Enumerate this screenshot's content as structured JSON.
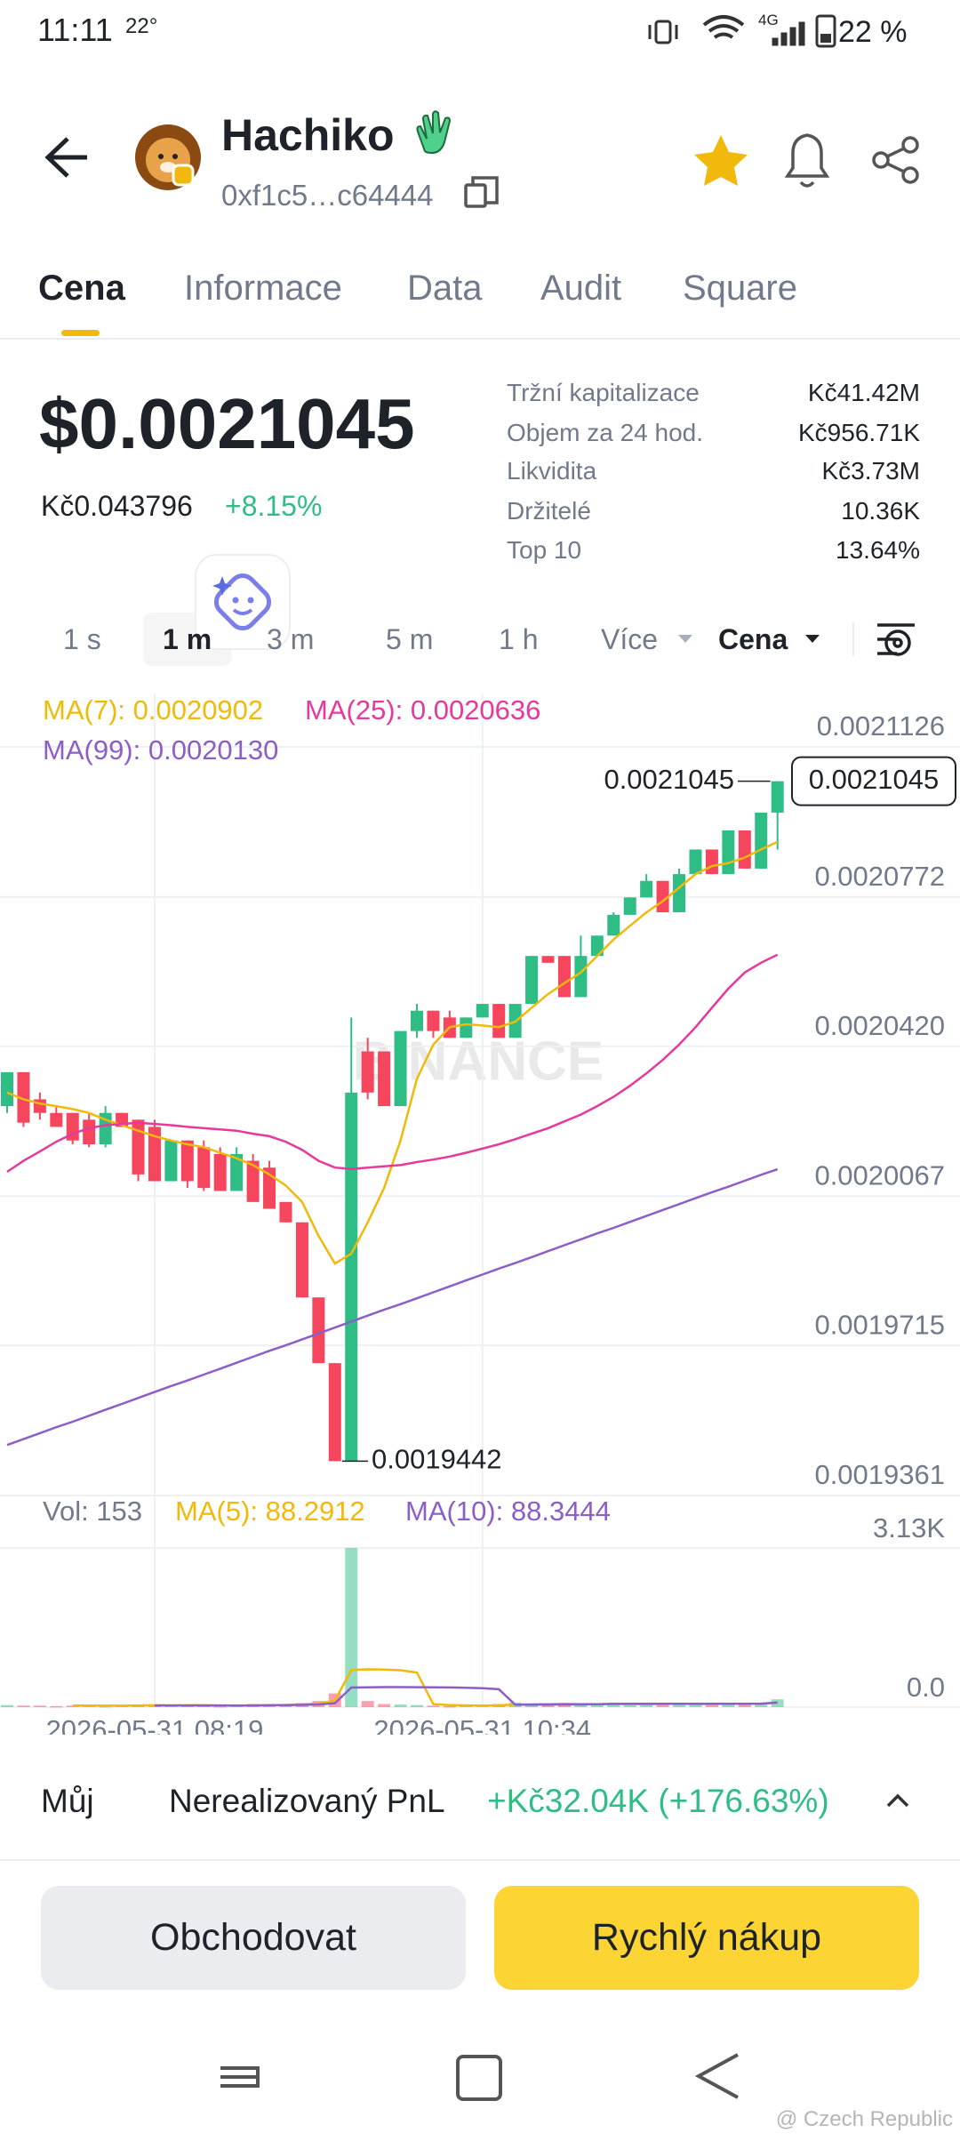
{
  "status": {
    "time": "11:11",
    "temperature": "22°",
    "network": "4G",
    "battery": "22 %"
  },
  "header": {
    "name": "Hachiko",
    "address": "0xf1c5…c64444"
  },
  "tabs": [
    "Cena",
    "Informace",
    "Data",
    "Audit",
    "Square"
  ],
  "price": {
    "usd": "$0.0021045",
    "fiat": "Kč0.043796",
    "change": "+8.15%"
  },
  "stats": [
    {
      "label": "Tržní kapitalizace",
      "value": "Kč41.42M"
    },
    {
      "label": "Objem za 24 hod.",
      "value": "Kč956.71K"
    },
    {
      "label": "Likvidita",
      "value": "Kč3.73M"
    },
    {
      "label": "Držitelé",
      "value": "10.36K"
    },
    {
      "label": "Top 10",
      "value": "13.64%"
    }
  ],
  "intervals": [
    "1 s",
    "1 m",
    "3 m",
    "5 m",
    "1 h",
    "Více",
    "Cena"
  ],
  "chart_data": [
    {
      "type": "candlestick",
      "watermark": "BINANCE",
      "categories": [
        null,
        null,
        null,
        null,
        null,
        null,
        null,
        null,
        null,
        "2026-05-31 08:19",
        null,
        null,
        null,
        null,
        null,
        null,
        null,
        null,
        null,
        null,
        null,
        null,
        null,
        null,
        null,
        null,
        null,
        null,
        null,
        "2026-05-31 10:34",
        null,
        null,
        null,
        null,
        null,
        null,
        null,
        null,
        null,
        null,
        null,
        null,
        null,
        null,
        null,
        null,
        null,
        null
      ],
      "up_color": "#2ebd85",
      "down_color": "#f6465d",
      "candles": [
        {
          "o": 0.0020279,
          "h": 0.0020359,
          "l": 0.0020263,
          "c": 0.0020359
        },
        {
          "o": 0.0020359,
          "h": 0.0020359,
          "l": 0.002023,
          "c": 0.002024
        },
        {
          "o": 0.0020295,
          "h": 0.0020311,
          "l": 0.0020247,
          "c": 0.0020263
        },
        {
          "o": 0.0020263,
          "h": 0.0020279,
          "l": 0.002023,
          "c": 0.002023
        },
        {
          "o": 0.0020263,
          "h": 0.0020263,
          "l": 0.0020189,
          "c": 0.0020198
        },
        {
          "o": 0.0020247,
          "h": 0.0020263,
          "l": 0.0020182,
          "c": 0.0020189
        },
        {
          "o": 0.0020189,
          "h": 0.0020279,
          "l": 0.0020182,
          "c": 0.0020263
        },
        {
          "o": 0.0020263,
          "h": 0.0020263,
          "l": 0.002023,
          "c": 0.002023
        },
        {
          "o": 0.0020247,
          "h": 0.0020247,
          "l": 0.0020102,
          "c": 0.0020118
        },
        {
          "o": 0.002023,
          "h": 0.0020247,
          "l": 0.0020102,
          "c": 0.0020102
        },
        {
          "o": 0.0020102,
          "h": 0.0020198,
          "l": 0.0020102,
          "c": 0.0020198
        },
        {
          "o": 0.0020198,
          "h": 0.0020198,
          "l": 0.0020086,
          "c": 0.0020102
        },
        {
          "o": 0.0020182,
          "h": 0.0020198,
          "l": 0.0020079,
          "c": 0.0020086
        },
        {
          "o": 0.0020166,
          "h": 0.0020182,
          "l": 0.0020079,
          "c": 0.0020079
        },
        {
          "o": 0.0020079,
          "h": 0.0020182,
          "l": 0.0020079,
          "c": 0.0020166
        },
        {
          "o": 0.002015,
          "h": 0.0020166,
          "l": 0.0020053,
          "c": 0.0020053
        },
        {
          "o": 0.0020134,
          "h": 0.002015,
          "l": 0.0020037,
          "c": 0.0020037
        },
        {
          "o": 0.0020053,
          "h": 0.0020053,
          "l": 0.0020005,
          "c": 0.0020005
        },
        {
          "o": 0.0020005,
          "h": 0.0020005,
          "l": 0.0019828,
          "c": 0.0019828
        },
        {
          "o": 0.0019828,
          "h": 0.0019828,
          "l": 0.0019673,
          "c": 0.0019673
        },
        {
          "o": 0.0019673,
          "h": 0.0019673,
          "l": 0.0019442,
          "c": 0.0019442
        },
        {
          "o": 0.0019442,
          "h": 0.0020488,
          "l": 0.0019442,
          "c": 0.0020311
        },
        {
          "o": 0.0020408,
          "h": 0.002044,
          "l": 0.0020295,
          "c": 0.0020311
        },
        {
          "o": 0.0020408,
          "h": 0.0020408,
          "l": 0.0020279,
          "c": 0.0020279
        },
        {
          "o": 0.0020279,
          "h": 0.0020456,
          "l": 0.0020279,
          "c": 0.0020456
        },
        {
          "o": 0.0020456,
          "h": 0.002052,
          "l": 0.002044,
          "c": 0.0020504
        },
        {
          "o": 0.0020504,
          "h": 0.0020504,
          "l": 0.002044,
          "c": 0.0020456
        },
        {
          "o": 0.0020488,
          "h": 0.0020504,
          "l": 0.002044,
          "c": 0.002044
        },
        {
          "o": 0.002044,
          "h": 0.0020488,
          "l": 0.002044,
          "c": 0.0020488
        },
        {
          "o": 0.0020488,
          "h": 0.002052,
          "l": 0.0020488,
          "c": 0.002052
        },
        {
          "o": 0.002052,
          "h": 0.002052,
          "l": 0.002044,
          "c": 0.002044
        },
        {
          "o": 0.002044,
          "h": 0.002052,
          "l": 0.002044,
          "c": 0.002052
        },
        {
          "o": 0.002052,
          "h": 0.0020633,
          "l": 0.002052,
          "c": 0.0020633
        },
        {
          "o": 0.0020633,
          "h": 0.0020633,
          "l": 0.0020617,
          "c": 0.0020617
        },
        {
          "o": 0.0020633,
          "h": 0.0020633,
          "l": 0.0020536,
          "c": 0.0020536
        },
        {
          "o": 0.0020536,
          "h": 0.0020681,
          "l": 0.0020536,
          "c": 0.0020633
        },
        {
          "o": 0.0020633,
          "h": 0.0020681,
          "l": 0.0020633,
          "c": 0.0020681
        },
        {
          "o": 0.0020681,
          "h": 0.0020736,
          "l": 0.0020681,
          "c": 0.002073
        },
        {
          "o": 0.002073,
          "h": 0.0020771,
          "l": 0.002073,
          "c": 0.0020771
        },
        {
          "o": 0.0020771,
          "h": 0.0020826,
          "l": 0.0020771,
          "c": 0.002081
        },
        {
          "o": 0.002081,
          "h": 0.002081,
          "l": 0.0020736,
          "c": 0.0020736
        },
        {
          "o": 0.0020736,
          "h": 0.0020839,
          "l": 0.0020736,
          "c": 0.0020826
        },
        {
          "o": 0.0020826,
          "h": 0.0020884,
          "l": 0.0020826,
          "c": 0.0020884
        },
        {
          "o": 0.0020884,
          "h": 0.0020884,
          "l": 0.0020826,
          "c": 0.0020826
        },
        {
          "o": 0.0020826,
          "h": 0.0020929,
          "l": 0.0020826,
          "c": 0.0020929
        },
        {
          "o": 0.0020929,
          "h": 0.0020929,
          "l": 0.0020839,
          "c": 0.0020839
        },
        {
          "o": 0.0020839,
          "h": 0.0020971,
          "l": 0.0020839,
          "c": 0.0020971
        },
        {
          "o": 0.0020971,
          "h": 0.0021045,
          "l": 0.0020884,
          "c": 0.0021045
        }
      ],
      "series": [
        {
          "name": "MA(7): 0.0020902",
          "color": "#f0b90b",
          "values": [
            0.0020311,
            0.0020295,
            0.0020285,
            0.0020279,
            0.0020272,
            0.0020263,
            0.0020247,
            0.0020234,
            0.0020221,
            0.0020208,
            0.0020198,
            0.0020189,
            0.0020182,
            0.0020169,
            0.0020156,
            0.002014,
            0.0020118,
            0.0020092,
            0.0020053,
            0.0019973,
            0.0019908,
            0.0019931,
            0.0020005,
            0.0020086,
            0.0020198,
            0.0020343,
            0.0020424,
            0.0020465,
            0.0020472,
            0.0020469,
            0.0020465,
            0.0020478,
            0.0020511,
            0.0020543,
            0.0020569,
            0.0020594,
            0.0020633,
            0.0020672,
            0.0020704,
            0.0020736,
            0.0020762,
            0.0020794,
            0.0020826,
            0.0020845,
            0.0020852,
            0.0020865,
            0.0020884,
            0.0020902
          ]
        },
        {
          "name": "MA(25): 0.0020636",
          "color": "#e6399b",
          "values": [
            0.0020124,
            0.002015,
            0.0020172,
            0.0020195,
            0.0020214,
            0.0020227,
            0.0020234,
            0.0020237,
            0.002024,
            0.0020237,
            0.0020234,
            0.002023,
            0.0020227,
            0.0020224,
            0.0020221,
            0.0020214,
            0.0020208,
            0.0020195,
            0.0020176,
            0.002015,
            0.0020134,
            0.0020131,
            0.0020134,
            0.0020137,
            0.002014,
            0.0020147,
            0.0020153,
            0.002016,
            0.0020169,
            0.0020179,
            0.0020189,
            0.0020201,
            0.0020214,
            0.0020227,
            0.0020243,
            0.0020259,
            0.0020279,
            0.0020301,
            0.0020327,
            0.0020356,
            0.0020388,
            0.0020424,
            0.0020465,
            0.0020511,
            0.0020556,
            0.0020594,
            0.0020617,
            0.0020636
          ]
        },
        {
          "name": "MA(99): 0.0020130",
          "color": "#8b5fc7",
          "values": [
            0.001948,
            0.0019494,
            0.0019508,
            0.0019522,
            0.0019535,
            0.0019549,
            0.0019563,
            0.0019577,
            0.0019591,
            0.0019605,
            0.0019619,
            0.0019632,
            0.0019646,
            0.001966,
            0.0019674,
            0.0019688,
            0.0019702,
            0.0019715,
            0.0019729,
            0.0019743,
            0.0019757,
            0.0019771,
            0.0019785,
            0.0019799,
            0.0019812,
            0.0019826,
            0.001984,
            0.0019854,
            0.0019868,
            0.0019882,
            0.0019896,
            0.0019909,
            0.0019923,
            0.0019937,
            0.0019951,
            0.0019965,
            0.0019979,
            0.0019992,
            0.0020006,
            0.002002,
            0.0020034,
            0.0020048,
            0.0020062,
            0.0020076,
            0.0020089,
            0.0020103,
            0.0020117,
            0.002013
          ]
        }
      ],
      "ylim": [
        0.0019361,
        0.0021126
      ],
      "yticks": [
        0.0021126,
        0.0020772,
        {
          "value": 0.002042,
          "label": "0.0020420"
        },
        0.0020067,
        0.0019715,
        0.0019361
      ],
      "grid": true,
      "high_label": "0.0021045",
      "low_label": "0.0019442",
      "last_price_label": "0.0021045"
    },
    {
      "type": "bar",
      "volume_label": "Vol: 153",
      "values": [
        40,
        30,
        30,
        20,
        30,
        40,
        20,
        30,
        50,
        40,
        30,
        30,
        30,
        20,
        30,
        60,
        40,
        60,
        80,
        120,
        270,
        3130,
        120,
        60,
        50,
        40,
        30,
        20,
        30,
        40,
        60,
        90,
        60,
        50,
        70,
        40,
        60,
        90,
        40,
        50,
        70,
        80,
        60,
        50,
        70,
        60,
        80,
        153
      ],
      "series": [
        {
          "name": "MA(5): 88.2912",
          "color": "#f0b90b",
          "values": [
            null,
            null,
            null,
            null,
            30,
            30,
            28,
            28,
            34,
            36,
            34,
            36,
            36,
            32,
            28,
            34,
            36,
            42,
            54,
            72,
            126,
            732,
            744,
            740,
            726,
            680,
            60,
            40,
            34,
            32,
            36,
            48,
            56,
            60,
            66,
            62,
            56,
            62,
            60,
            58,
            62,
            66,
            60,
            62,
            66,
            64,
            64,
            88.2912
          ]
        },
        {
          "name": "MA(10): 88.3444",
          "color": "#8b5fc7",
          "values": [
            null,
            null,
            null,
            null,
            null,
            null,
            null,
            null,
            null,
            34,
            33,
            33,
            33,
            33,
            32,
            34,
            36,
            39,
            43,
            52,
            76,
            384,
            390,
            394,
            393,
            391,
            390,
            386,
            381,
            373,
            352,
            48,
            49,
            50,
            52,
            53,
            56,
            63,
            64,
            65,
            66,
            65,
            65,
            65,
            65,
            67,
            69,
            88.3444
          ]
        }
      ],
      "ylim": [
        0,
        3130
      ],
      "yticks": [
        {
          "value": 3130,
          "label": "3.13K"
        },
        {
          "value": 0,
          "label": "0.0"
        }
      ]
    }
  ],
  "position": {
    "label": "Můj",
    "pnl_label": "Nerealizovaný PnL",
    "pnl": "+Kč32.04K (+176.63%)"
  },
  "buttons": [
    "Obchodovat",
    "Rychlý nákup"
  ],
  "footer": {
    "watermark": "@ Czech Republic"
  }
}
